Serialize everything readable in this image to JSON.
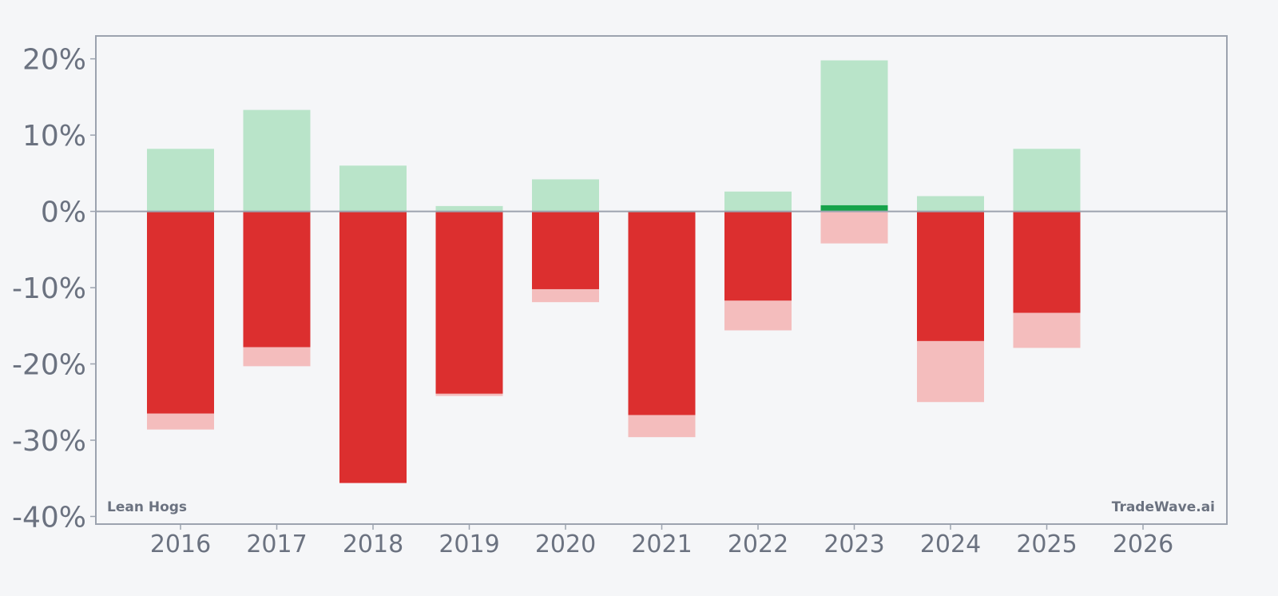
{
  "chart_data": {
    "type": "bar",
    "categories": [
      "2016",
      "2017",
      "2018",
      "2019",
      "2020",
      "2021",
      "2022",
      "2023",
      "2024",
      "2025",
      "2026"
    ],
    "series": [
      {
        "values": [
          8.2,
          13.3,
          6.0,
          0.7,
          4.2,
          0.0,
          2.6,
          19.8,
          2.0,
          8.2,
          null
        ],
        "role": "max-range"
      },
      {
        "values": [
          -28.6,
          -20.3,
          -35.6,
          -24.2,
          -11.9,
          -29.6,
          -15.6,
          -4.2,
          -25.0,
          -17.9,
          null
        ],
        "role": "min-range"
      },
      {
        "values": [
          -26.5,
          -17.8,
          -35.6,
          -23.9,
          -10.2,
          -26.7,
          -11.7,
          0.8,
          -17.0,
          -13.3,
          null
        ],
        "role": "close"
      }
    ],
    "ylim": [
      -41,
      23
    ],
    "yticks": [
      20,
      10,
      0,
      -10,
      -20,
      -30,
      -40
    ],
    "ytick_labels": [
      "20%",
      "10%",
      "0%",
      "-10%",
      "-20%",
      "-30%",
      "-40%"
    ],
    "grid": false,
    "colors": {
      "up_light": "#b9e4c9",
      "up_strong": "#16a34a",
      "down_light": "#f4bdbd",
      "down_strong": "#dc2f2f",
      "axis": "#9ca3af",
      "text": "#6b7280"
    }
  },
  "labels": {
    "left": "Lean Hogs",
    "right": "TradeWave.ai"
  }
}
